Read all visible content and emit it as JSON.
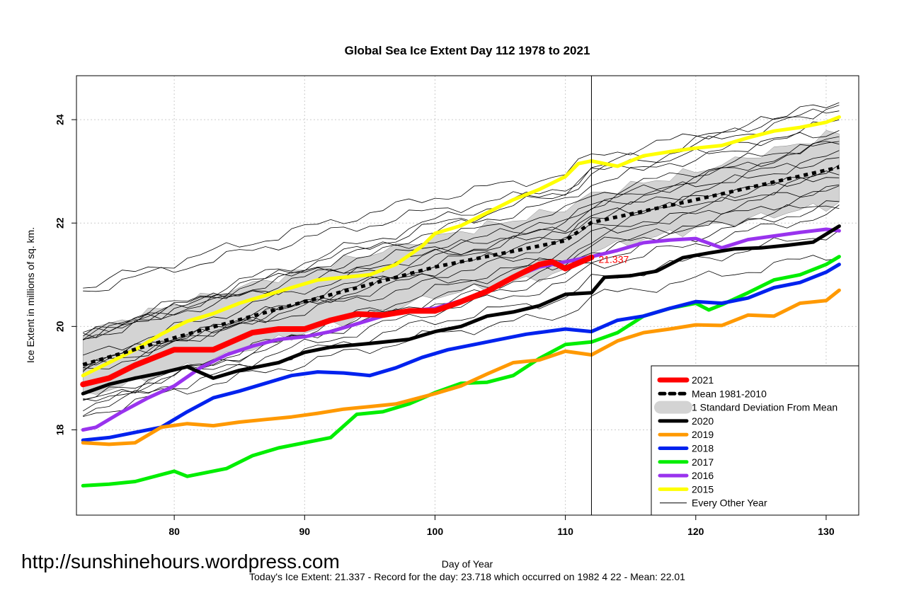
{
  "chart_data": {
    "type": "line",
    "title": "Global Sea Ice Extent Day 112 1978 to 2021",
    "xlabel": "Day of Year",
    "ylabel": "Ice Extent in millions of sq. km.",
    "xlim": [
      72.5,
      132.5
    ],
    "ylim": [
      16.35,
      24.85
    ],
    "xticks": [
      80,
      90,
      100,
      110,
      120,
      130
    ],
    "yticks": [
      18,
      20,
      22,
      24
    ],
    "grid": true,
    "current_day": 112,
    "current_value_label": "21.337",
    "current_value": 21.337,
    "mean_1981_2010": {
      "name": "Mean 1981-2010",
      "color": "#000000",
      "x": [
        73,
        80,
        90,
        100,
        110,
        112,
        120,
        131
      ],
      "y": [
        19.26,
        19.78,
        20.48,
        21.15,
        21.66,
        22.01,
        22.45,
        23.08
      ]
    },
    "std_band": {
      "name": "1 Standard Deviation From Mean",
      "color": "#d3d3d3",
      "x": [
        73,
        80,
        90,
        100,
        110,
        112,
        120,
        131
      ],
      "upper": [
        19.88,
        20.42,
        21.08,
        21.72,
        22.28,
        22.55,
        23.0,
        23.75
      ],
      "lower": [
        18.65,
        19.15,
        19.88,
        20.58,
        21.05,
        21.46,
        21.9,
        22.38
      ]
    },
    "series": [
      {
        "name": "2021",
        "color": "#ff0000",
        "width": 8,
        "x": [
          73,
          75,
          77,
          80,
          83,
          86,
          88,
          90,
          92,
          94,
          96,
          98,
          100,
          102,
          104,
          106,
          108,
          109,
          110,
          112
        ],
        "y": [
          18.88,
          19.0,
          19.25,
          19.55,
          19.55,
          19.88,
          19.95,
          19.95,
          20.12,
          20.24,
          20.22,
          20.3,
          20.3,
          20.48,
          20.68,
          20.95,
          21.2,
          21.25,
          21.12,
          21.337
        ]
      },
      {
        "name": "2020",
        "color": "#000000",
        "width": 5,
        "x": [
          73,
          75,
          77,
          79,
          81,
          83,
          85,
          88,
          90,
          92,
          95,
          98,
          100,
          102,
          104,
          106,
          108,
          110,
          112,
          113,
          115,
          117,
          119,
          121,
          123,
          125,
          127,
          129,
          131
        ],
        "y": [
          18.7,
          18.88,
          19.0,
          19.1,
          19.22,
          19.0,
          19.15,
          19.3,
          19.5,
          19.6,
          19.67,
          19.75,
          19.9,
          20.0,
          20.2,
          20.28,
          20.4,
          20.62,
          20.65,
          20.95,
          20.98,
          21.07,
          21.33,
          21.42,
          21.5,
          21.52,
          21.57,
          21.63,
          21.94
        ]
      },
      {
        "name": "2019",
        "color": "#ff9900",
        "width": 5,
        "x": [
          73,
          75,
          77,
          79,
          81,
          83,
          85,
          87,
          89,
          91,
          93,
          95,
          97,
          100,
          102,
          104,
          106,
          108,
          110,
          112,
          114,
          116,
          118,
          120,
          122,
          124,
          126,
          128,
          130,
          131
        ],
        "y": [
          17.75,
          17.72,
          17.75,
          18.05,
          18.12,
          18.08,
          18.15,
          18.2,
          18.25,
          18.32,
          18.4,
          18.45,
          18.5,
          18.7,
          18.85,
          19.08,
          19.3,
          19.35,
          19.52,
          19.45,
          19.72,
          19.88,
          19.95,
          20.03,
          20.02,
          20.22,
          20.2,
          20.45,
          20.5,
          20.7
        ]
      },
      {
        "name": "2018",
        "color": "#0022ee",
        "width": 5,
        "x": [
          73,
          75,
          77,
          79,
          81,
          83,
          85,
          87,
          89,
          91,
          93,
          95,
          97,
          99,
          101,
          103,
          105,
          107,
          110,
          112,
          114,
          116,
          118,
          120,
          122,
          124,
          126,
          128,
          130,
          131
        ],
        "y": [
          17.8,
          17.85,
          17.95,
          18.05,
          18.35,
          18.62,
          18.75,
          18.9,
          19.05,
          19.12,
          19.1,
          19.05,
          19.2,
          19.4,
          19.55,
          19.65,
          19.75,
          19.85,
          19.95,
          19.9,
          20.12,
          20.2,
          20.35,
          20.48,
          20.45,
          20.55,
          20.75,
          20.85,
          21.05,
          21.2
        ]
      },
      {
        "name": "2017",
        "color": "#00ee00",
        "width": 5,
        "x": [
          73,
          75,
          77,
          80,
          81,
          84,
          86,
          88,
          90,
          92,
          94,
          96,
          98,
          100,
          102,
          104,
          106,
          108,
          110,
          112,
          114,
          116,
          118,
          120,
          121,
          122,
          124,
          126,
          128,
          130,
          131
        ],
        "y": [
          16.92,
          16.95,
          17.0,
          17.2,
          17.1,
          17.25,
          17.5,
          17.65,
          17.75,
          17.85,
          18.3,
          18.35,
          18.5,
          18.72,
          18.9,
          18.92,
          19.05,
          19.38,
          19.65,
          19.7,
          19.88,
          20.2,
          20.35,
          20.45,
          20.32,
          20.42,
          20.65,
          20.9,
          21.0,
          21.2,
          21.35
        ]
      },
      {
        "name": "2016",
        "color": "#9933ee",
        "width": 5,
        "x": [
          73,
          74,
          76,
          78,
          80,
          82,
          84,
          86,
          88,
          90,
          92,
          94,
          96,
          98,
          100,
          102,
          104,
          106,
          108,
          110,
          112,
          114,
          116,
          118,
          120,
          122,
          124,
          126,
          128,
          130,
          131
        ],
        "y": [
          18.0,
          18.05,
          18.35,
          18.62,
          18.85,
          19.2,
          19.45,
          19.62,
          19.75,
          19.8,
          19.9,
          20.05,
          20.2,
          20.3,
          20.35,
          20.5,
          20.7,
          20.95,
          21.15,
          21.25,
          21.35,
          21.47,
          21.62,
          21.67,
          21.7,
          21.52,
          21.68,
          21.75,
          21.82,
          21.88,
          21.85
        ]
      },
      {
        "name": "2015",
        "color": "#ffff00",
        "width": 5,
        "x": [
          73,
          75,
          77,
          79,
          81,
          83,
          85,
          87,
          89,
          91,
          93,
          95,
          97,
          99,
          100,
          102,
          104,
          106,
          108,
          110,
          111,
          112,
          114,
          116,
          118,
          120,
          122,
          124,
          126,
          128,
          130,
          131
        ],
        "y": [
          19.05,
          19.3,
          19.55,
          19.85,
          20.1,
          20.25,
          20.45,
          20.6,
          20.75,
          20.9,
          20.95,
          21.0,
          21.2,
          21.55,
          21.8,
          21.95,
          22.2,
          22.45,
          22.65,
          22.9,
          23.15,
          23.2,
          23.1,
          23.3,
          23.38,
          23.45,
          23.5,
          23.65,
          23.78,
          23.85,
          23.95,
          24.05
        ]
      }
    ],
    "other_years_legend": "Every Other Year",
    "legend_position": "bottom-right",
    "legend_entries": [
      {
        "label": "2021",
        "color": "#ff0000",
        "kind": "thick"
      },
      {
        "label": "Mean 1981-2010",
        "color": "#000000",
        "kind": "dash"
      },
      {
        "label": "1 Standard Deviation From Mean",
        "color": "#d3d3d3",
        "kind": "band"
      },
      {
        "label": "2020",
        "color": "#000000",
        "kind": "line"
      },
      {
        "label": "2019",
        "color": "#ff9900",
        "kind": "line"
      },
      {
        "label": "2018",
        "color": "#0022ee",
        "kind": "line"
      },
      {
        "label": "2017",
        "color": "#00ee00",
        "kind": "line"
      },
      {
        "label": "2016",
        "color": "#9933ee",
        "kind": "line"
      },
      {
        "label": "2015",
        "color": "#ffff00",
        "kind": "line"
      },
      {
        "label": "Every Other Year",
        "color": "#000000",
        "kind": "thin"
      }
    ]
  },
  "site_url": "http://sunshinehours.wordpress.com",
  "footer": "Today's Ice Extent: 21.337  - Record for the day: 23.718 which occurred on 1982 4 22  - Mean: 22.01"
}
